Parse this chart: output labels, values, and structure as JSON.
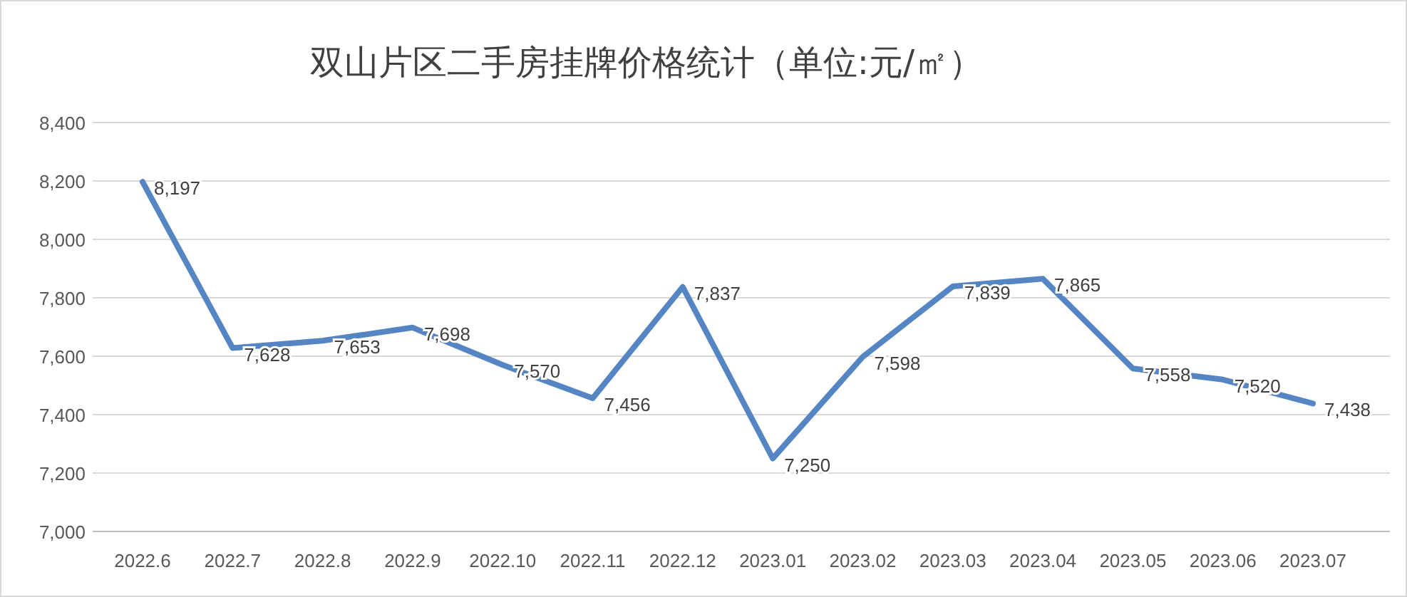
{
  "chart_data": {
    "type": "line",
    "title": "双山片区二手房挂牌价格统计（单位:元/㎡）",
    "categories": [
      "2022.6",
      "2022.7",
      "2022.8",
      "2022.9",
      "2022.10",
      "2022.11",
      "2022.12",
      "2023.01",
      "2023.02",
      "2023.03",
      "2023.04",
      "2023.05",
      "2023.06",
      "2023.07"
    ],
    "series": [
      {
        "color": "#5585c2",
        "values": [
          8197,
          7628,
          7653,
          7698,
          7570,
          7456,
          7837,
          7250,
          7598,
          7839,
          7865,
          7558,
          7520,
          7438
        ],
        "value_labels": [
          "8,197",
          "7,628",
          "7,653",
          "7,698",
          "7,570",
          "7,456",
          "7,837",
          "7,250",
          "7,598",
          "7,839",
          "7,865",
          "7,558",
          "7,520",
          "7,438"
        ]
      }
    ],
    "ylim": [
      7000,
      8400
    ],
    "yticks": [
      {
        "value": 7000,
        "label": "7,000"
      },
      {
        "value": 7200,
        "label": "7,200"
      },
      {
        "value": 7400,
        "label": "7,400"
      },
      {
        "value": 7600,
        "label": "7,600"
      },
      {
        "value": 7800,
        "label": "7,800"
      },
      {
        "value": 8000,
        "label": "8,000"
      },
      {
        "value": 8200,
        "label": "8,200"
      },
      {
        "value": 8400,
        "label": "8,400"
      }
    ],
    "grid": "y",
    "marker": "none",
    "line_style": "solid"
  }
}
